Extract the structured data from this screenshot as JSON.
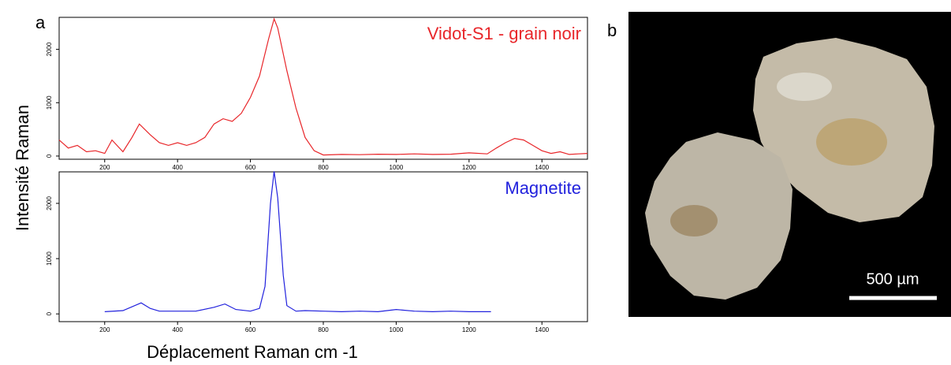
{
  "panel_labels": [
    "a",
    "b"
  ],
  "y_label": "Intensité Raman",
  "x_label": "Déplacement Raman cm -1",
  "image": {
    "scale_bar": "500 µm"
  },
  "chart_data": [
    {
      "type": "line",
      "title": "Vidot-S1 - grain noir",
      "x": [
        75,
        100,
        125,
        150,
        175,
        200,
        220,
        250,
        275,
        295,
        325,
        350,
        375,
        400,
        425,
        450,
        475,
        500,
        525,
        550,
        575,
        600,
        625,
        650,
        665,
        675,
        700,
        725,
        750,
        775,
        800,
        850,
        900,
        950,
        1000,
        1050,
        1100,
        1150,
        1200,
        1250,
        1275,
        1300,
        1325,
        1350,
        1375,
        1400,
        1425,
        1450,
        1475,
        1500,
        1525
      ],
      "series": [
        {
          "name": "Vidot-S1 - grain noir",
          "color": "#e8262a",
          "values": [
            300,
            150,
            200,
            80,
            100,
            50,
            300,
            80,
            350,
            600,
            400,
            250,
            200,
            250,
            200,
            250,
            350,
            600,
            700,
            650,
            800,
            1100,
            1500,
            2200,
            2570,
            2400,
            1600,
            900,
            350,
            100,
            20,
            30,
            25,
            35,
            30,
            40,
            30,
            35,
            60,
            40,
            150,
            250,
            330,
            300,
            200,
            100,
            50,
            80,
            30,
            40,
            50
          ]
        }
      ],
      "xlim": [
        75,
        1525
      ],
      "ylim": [
        -60,
        2600
      ],
      "xticks": [
        200,
        400,
        600,
        800,
        1000,
        1200,
        1400
      ],
      "yticks": [
        0,
        1000,
        2000
      ]
    },
    {
      "type": "line",
      "title": "Magnetite",
      "x": [
        200,
        250,
        300,
        325,
        350,
        400,
        450,
        500,
        530,
        560,
        600,
        625,
        640,
        655,
        665,
        675,
        690,
        700,
        725,
        750,
        800,
        850,
        900,
        950,
        1000,
        1050,
        1100,
        1150,
        1200,
        1260
      ],
      "series": [
        {
          "name": "Magnetite",
          "color": "#2222dd",
          "values": [
            40,
            60,
            200,
            100,
            50,
            50,
            50,
            120,
            180,
            80,
            50,
            100,
            500,
            2000,
            2580,
            2100,
            700,
            150,
            50,
            60,
            50,
            40,
            50,
            40,
            80,
            50,
            40,
            50,
            40,
            40
          ]
        }
      ],
      "xlim": [
        75,
        1525
      ],
      "ylim": [
        -140,
        2570
      ],
      "xticks": [
        200,
        400,
        600,
        800,
        1000,
        1200,
        1400
      ],
      "yticks": [
        0,
        1000,
        2000
      ]
    }
  ]
}
